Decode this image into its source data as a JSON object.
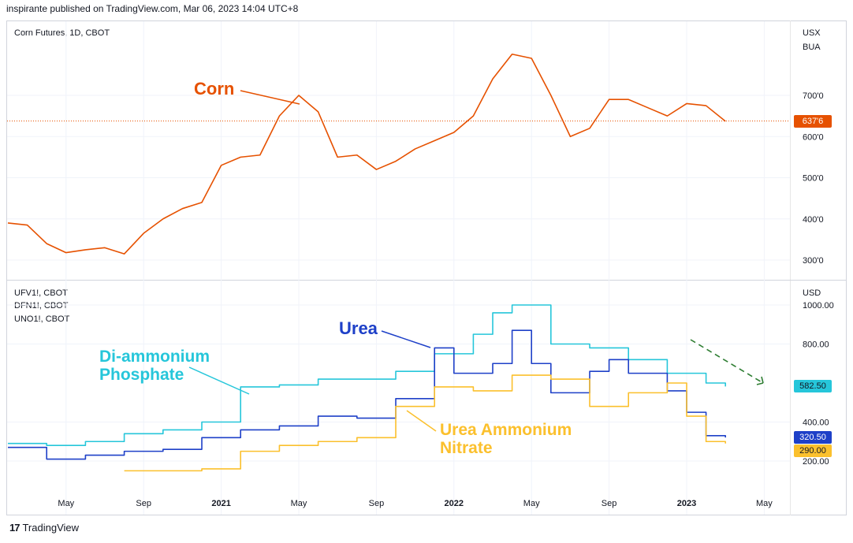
{
  "header": {
    "publisher": "inspirante published on TradingView.com, Mar 06, 2023 14:04 UTC+8"
  },
  "top_pane": {
    "symbol": "Corn Futures, 1D, CBOT",
    "currency": "USX",
    "unit": "BUA",
    "price_ticks": [
      "700'0",
      "600'0",
      "500'0",
      "400'0",
      "300'0"
    ],
    "last_price": "637'6",
    "last_price_color": "#e65100"
  },
  "bottom_pane": {
    "symbols": [
      "UFV1!, CBOT",
      "DFN1!, CBOT",
      "UNO1!, CBOT"
    ],
    "currency": "USD",
    "price_ticks": [
      "1000.00",
      "800.00",
      "400.00",
      "200.00"
    ],
    "badges": [
      {
        "value": "582.50",
        "color": "#26c6da",
        "text_color": "#131722"
      },
      {
        "value": "320.50",
        "color": "#1e40c8",
        "text_color": "#ffffff"
      },
      {
        "value": "290.00",
        "color": "#fbc02d",
        "text_color": "#131722"
      }
    ]
  },
  "time_axis": [
    "May",
    "Sep",
    "2021",
    "May",
    "Sep",
    "2022",
    "May",
    "Sep",
    "2023",
    "May"
  ],
  "annotations": {
    "corn": "Corn",
    "urea": "Urea",
    "dap_line1": "Di-ammonium",
    "dap_line2": "Phosphate",
    "uan_line1": "Urea Ammonium",
    "uan_line2": "Nitrate"
  },
  "footer": {
    "brand": "TradingView",
    "logo": "17"
  },
  "chart_data": [
    {
      "type": "line",
      "title": "Corn Futures, 1D, CBOT",
      "ylabel": "USX/BUA",
      "ylim": [
        250,
        850
      ],
      "series": [
        {
          "name": "Corn",
          "color": "#e65100",
          "x": [
            "2020-02",
            "2020-03",
            "2020-04",
            "2020-05",
            "2020-06",
            "2020-07",
            "2020-08",
            "2020-09",
            "2020-10",
            "2020-11",
            "2020-12",
            "2021-01",
            "2021-02",
            "2021-03",
            "2021-04",
            "2021-05",
            "2021-06",
            "2021-07",
            "2021-08",
            "2021-09",
            "2021-10",
            "2021-11",
            "2021-12",
            "2022-01",
            "2022-02",
            "2022-03",
            "2022-04",
            "2022-05",
            "2022-06",
            "2022-07",
            "2022-08",
            "2022-09",
            "2022-10",
            "2022-11",
            "2022-12",
            "2023-01",
            "2023-02",
            "2023-03"
          ],
          "values": [
            390,
            385,
            340,
            318,
            325,
            330,
            315,
            365,
            400,
            425,
            440,
            530,
            550,
            555,
            650,
            700,
            660,
            550,
            555,
            520,
            540,
            570,
            590,
            610,
            650,
            740,
            800,
            790,
            700,
            600,
            620,
            690,
            690,
            670,
            650,
            680,
            675,
            637
          ]
        }
      ]
    },
    {
      "type": "line",
      "ylabel": "USD",
      "ylim": [
        100,
        1050
      ],
      "series": [
        {
          "name": "Di-ammonium Phosphate",
          "color": "#26c6da",
          "x": [
            "2020-02",
            "2020-04",
            "2020-06",
            "2020-08",
            "2020-10",
            "2020-12",
            "2021-02",
            "2021-04",
            "2021-06",
            "2021-08",
            "2021-10",
            "2021-12",
            "2022-02",
            "2022-03",
            "2022-04",
            "2022-06",
            "2022-08",
            "2022-10",
            "2022-12",
            "2023-02",
            "2023-03"
          ],
          "values": [
            290,
            280,
            300,
            340,
            360,
            400,
            580,
            590,
            620,
            620,
            660,
            750,
            850,
            960,
            1000,
            800,
            780,
            720,
            650,
            600,
            582.5
          ]
        },
        {
          "name": "Urea",
          "color": "#1e40c8",
          "x": [
            "2020-02",
            "2020-04",
            "2020-06",
            "2020-08",
            "2020-10",
            "2020-12",
            "2021-02",
            "2021-04",
            "2021-06",
            "2021-08",
            "2021-10",
            "2021-12",
            "2022-01",
            "2022-03",
            "2022-04",
            "2022-05",
            "2022-06",
            "2022-08",
            "2022-09",
            "2022-10",
            "2022-12",
            "2023-01",
            "2023-02",
            "2023-03"
          ],
          "values": [
            270,
            210,
            230,
            250,
            260,
            320,
            360,
            380,
            430,
            420,
            520,
            780,
            650,
            700,
            870,
            700,
            550,
            660,
            720,
            650,
            560,
            450,
            330,
            320.5
          ]
        },
        {
          "name": "Urea Ammonium Nitrate",
          "color": "#fbc02d",
          "x": [
            "2020-08",
            "2020-10",
            "2020-12",
            "2021-02",
            "2021-04",
            "2021-06",
            "2021-08",
            "2021-10",
            "2021-12",
            "2022-02",
            "2022-04",
            "2022-06",
            "2022-08",
            "2022-10",
            "2022-12",
            "2023-01",
            "2023-02",
            "2023-03"
          ],
          "values": [
            150,
            150,
            160,
            250,
            280,
            300,
            320,
            480,
            580,
            560,
            640,
            620,
            480,
            550,
            600,
            430,
            300,
            290
          ]
        }
      ]
    }
  ]
}
